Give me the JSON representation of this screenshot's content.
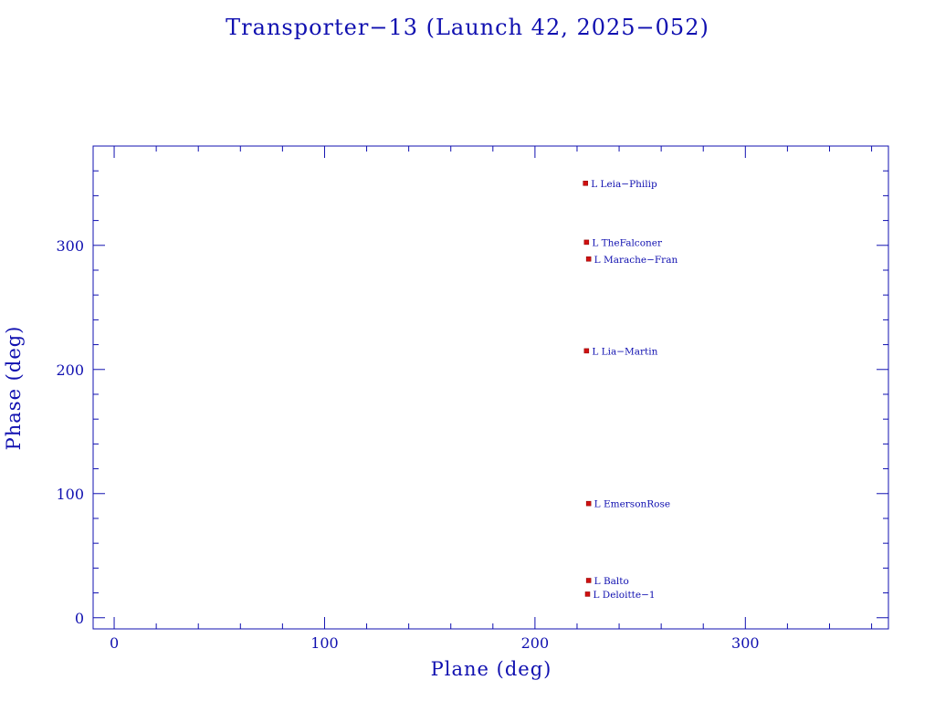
{
  "chart_data": {
    "type": "scatter",
    "title": "Transporter−13 (Launch 42, 2025−052)",
    "xlabel": "Plane (deg)",
    "ylabel": "Phase (deg)",
    "xlim": [
      -10,
      368
    ],
    "ylim": [
      -9,
      380
    ],
    "x_ticks": [
      0,
      100,
      200,
      300
    ],
    "y_ticks": [
      0,
      100,
      200,
      300
    ],
    "x_minor_step": 20,
    "y_minor_step": 20,
    "grid": false,
    "legend": "none",
    "marker_color": "#d01010",
    "text_color": "#1010b0",
    "points": [
      {
        "label": "L Leia−Philip",
        "x": 224.0,
        "y": 350.0
      },
      {
        "label": "L TheFalconer",
        "x": 224.5,
        "y": 302.5
      },
      {
        "label": "L Marache−Fran",
        "x": 225.5,
        "y": 289.0
      },
      {
        "label": "L Lia−Martin",
        "x": 224.5,
        "y": 215.0
      },
      {
        "label": "L EmersonRose",
        "x": 225.5,
        "y": 92.0
      },
      {
        "label": "L Balto",
        "x": 225.5,
        "y": 30.0
      },
      {
        "label": "L Deloitte−1",
        "x": 225.0,
        "y": 19.0
      }
    ]
  }
}
